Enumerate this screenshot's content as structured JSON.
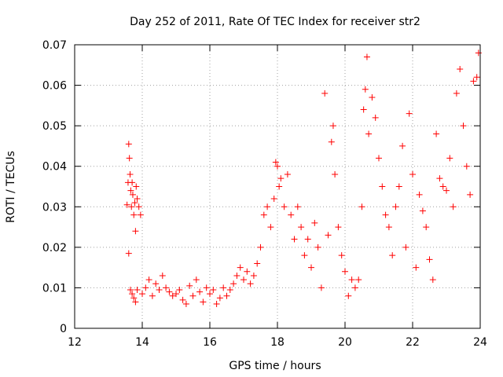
{
  "chart_data": {
    "type": "scatter",
    "title": "Day 252 of 2011, Rate Of TEC Index for receiver str2",
    "xlabel": "GPS time / hours",
    "ylabel": "ROTI / TECUs",
    "xlim": [
      12,
      24
    ],
    "ylim": [
      0,
      0.07
    ],
    "x_ticks": [
      12,
      14,
      16,
      18,
      20,
      22,
      24
    ],
    "x_tick_labels": [
      "12",
      "14",
      "16",
      "18",
      "20",
      "22",
      "24"
    ],
    "y_ticks": [
      0,
      0.01,
      0.02,
      0.03,
      0.04,
      0.05,
      0.06,
      0.07
    ],
    "y_tick_labels": [
      "0",
      "0.01",
      "0.02",
      "0.03",
      "0.04",
      "0.05",
      "0.06",
      "0.07"
    ],
    "grid": true,
    "marker": "+",
    "color": "#ff0000",
    "series": [
      {
        "x": [
          13.55,
          13.58,
          13.6,
          13.62,
          13.64,
          13.66,
          13.68,
          13.7,
          13.72,
          13.75,
          13.78,
          13.8,
          13.82,
          13.85,
          13.9,
          13.95,
          13.6,
          13.65,
          13.7,
          13.75,
          13.8,
          13.85,
          14.0,
          14.1,
          14.2,
          14.3,
          14.4,
          14.5,
          14.6,
          14.7,
          14.8,
          14.9,
          15.0,
          15.1,
          15.2,
          15.3,
          15.4,
          15.5,
          15.6,
          15.7,
          15.8,
          15.9,
          16.0,
          16.1,
          16.2,
          16.3,
          16.4,
          16.5,
          16.6,
          16.7,
          16.8,
          16.9,
          17.0,
          17.1,
          17.2,
          17.3,
          17.4,
          17.5,
          17.6,
          17.7,
          17.8,
          17.9,
          17.95,
          18.0,
          18.05,
          18.1,
          18.2,
          18.3,
          18.4,
          18.5,
          18.6,
          18.7,
          18.8,
          18.9,
          19.0,
          19.1,
          19.2,
          19.3,
          19.4,
          19.5,
          19.6,
          19.65,
          19.7,
          19.8,
          19.9,
          20.0,
          20.1,
          20.2,
          20.3,
          20.4,
          20.5,
          20.55,
          20.6,
          20.65,
          20.7,
          20.8,
          20.9,
          21.0,
          21.1,
          21.2,
          21.3,
          21.4,
          21.5,
          21.6,
          21.7,
          21.8,
          21.9,
          22.0,
          22.1,
          22.2,
          22.3,
          22.4,
          22.5,
          22.6,
          22.7,
          22.8,
          22.9,
          23.0,
          23.1,
          23.2,
          23.3,
          23.4,
          23.5,
          23.6,
          23.7,
          23.8,
          23.9,
          23.95
        ],
        "y": [
          0.0305,
          0.036,
          0.0455,
          0.042,
          0.038,
          0.034,
          0.03,
          0.036,
          0.033,
          0.028,
          0.031,
          0.024,
          0.035,
          0.032,
          0.03,
          0.028,
          0.0185,
          0.0095,
          0.0085,
          0.0075,
          0.0065,
          0.0095,
          0.0085,
          0.01,
          0.012,
          0.008,
          0.011,
          0.0095,
          0.013,
          0.01,
          0.009,
          0.008,
          0.0085,
          0.0095,
          0.007,
          0.006,
          0.0105,
          0.008,
          0.012,
          0.009,
          0.0065,
          0.01,
          0.0085,
          0.0095,
          0.006,
          0.0075,
          0.01,
          0.008,
          0.0095,
          0.011,
          0.013,
          0.015,
          0.012,
          0.014,
          0.011,
          0.013,
          0.016,
          0.02,
          0.028,
          0.03,
          0.025,
          0.032,
          0.041,
          0.04,
          0.035,
          0.037,
          0.03,
          0.038,
          0.028,
          0.022,
          0.03,
          0.025,
          0.018,
          0.022,
          0.015,
          0.026,
          0.02,
          0.01,
          0.058,
          0.023,
          0.046,
          0.05,
          0.038,
          0.025,
          0.018,
          0.014,
          0.008,
          0.012,
          0.01,
          0.012,
          0.03,
          0.054,
          0.059,
          0.067,
          0.048,
          0.057,
          0.052,
          0.042,
          0.035,
          0.028,
          0.025,
          0.018,
          0.03,
          0.035,
          0.045,
          0.02,
          0.053,
          0.038,
          0.015,
          0.033,
          0.029,
          0.025,
          0.017,
          0.012,
          0.048,
          0.037,
          0.035,
          0.034,
          0.042,
          0.03,
          0.058,
          0.064,
          0.05,
          0.04,
          0.033,
          0.061,
          0.062,
          0.068
        ]
      }
    ]
  }
}
